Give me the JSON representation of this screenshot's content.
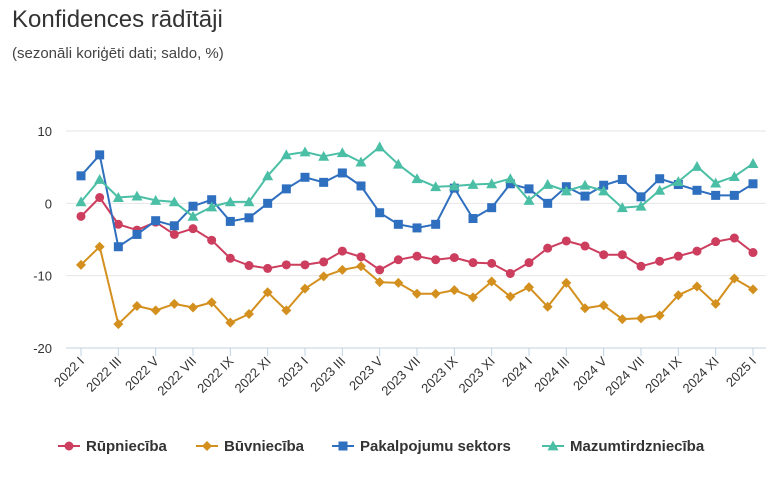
{
  "chart_data": {
    "type": "line",
    "title": "Konfidences rādītāji",
    "subtitle": "(sezonāli koriģēti dati; saldo, %)",
    "xlabel": "",
    "ylabel": "",
    "ylim": [
      -20,
      10
    ],
    "yticks": [
      10,
      0,
      -10,
      -20
    ],
    "grid": true,
    "legend_position": "bottom",
    "x": [
      "2022 I",
      "2022 II",
      "2022 III",
      "2022 IV",
      "2022 V",
      "2022 VI",
      "2022 VII",
      "2022 VIII",
      "2022 IX",
      "2022 X",
      "2022 XI",
      "2022 XII",
      "2023 I",
      "2023 II",
      "2023 III",
      "2023 IV",
      "2023 V",
      "2023 VI",
      "2023 VII",
      "2023 VIII",
      "2023 IX",
      "2023 X",
      "2023 XI",
      "2023 XII",
      "2024 I",
      "2024 II",
      "2024 III",
      "2024 IV",
      "2024 V",
      "2024 VI",
      "2024 VII",
      "2024 VIII",
      "2024 IX",
      "2024 X",
      "2024 XI",
      "2024 XII",
      "2025 I"
    ],
    "x_tick_labels": [
      "2022 I",
      "2022 III",
      "2022 V",
      "2022 VII",
      "2022 IX",
      "2022 XI",
      "2023 I",
      "2023 III",
      "2023 V",
      "2023 VII",
      "2023 IX",
      "2023 XI",
      "2024 I",
      "2024 III",
      "2024 V",
      "2024 VII",
      "2024 IX",
      "2024 XI",
      "2025 I"
    ],
    "series": [
      {
        "name": "Rūpniecība",
        "color": "#cc3d5e",
        "marker": "circle",
        "values": [
          -1.8,
          0.8,
          -2.9,
          -3.7,
          -2.6,
          -4.3,
          -3.5,
          -5.1,
          -7.6,
          -8.6,
          -9.0,
          -8.5,
          -8.5,
          -8.1,
          -6.6,
          -7.4,
          -9.2,
          -7.8,
          -7.3,
          -7.8,
          -7.5,
          -8.2,
          -8.3,
          -9.7,
          -8.2,
          -6.2,
          -5.2,
          -5.9,
          -7.1,
          -7.1,
          -8.7,
          -8.0,
          -7.3,
          -6.6,
          -5.3,
          -4.8,
          -6.8
        ]
      },
      {
        "name": "Būvniecība",
        "color": "#d4901e",
        "marker": "diamond",
        "values": [
          -8.5,
          -6.0,
          -16.7,
          -14.2,
          -14.8,
          -13.9,
          -14.4,
          -13.7,
          -16.5,
          -15.3,
          -12.3,
          -14.8,
          -11.8,
          -10.1,
          -9.2,
          -8.7,
          -10.9,
          -11.0,
          -12.5,
          -12.5,
          -12.0,
          -13.0,
          -10.8,
          -12.9,
          -11.6,
          -14.3,
          -11.0,
          -14.5,
          -14.1,
          -16.0,
          -15.9,
          -15.5,
          -12.7,
          -11.5,
          -13.9,
          -10.4,
          -11.9
        ]
      },
      {
        "name": "Pakalpojumu sektors",
        "color": "#2f6fbf",
        "marker": "square",
        "values": [
          3.8,
          6.7,
          -6.0,
          -4.3,
          -2.4,
          -3.1,
          -0.4,
          0.5,
          -2.5,
          -2.0,
          0.0,
          2.0,
          3.6,
          2.9,
          4.2,
          2.4,
          -1.3,
          -2.9,
          -3.4,
          -2.9,
          2.1,
          -2.1,
          -0.6,
          2.7,
          2.0,
          0.0,
          2.3,
          1.0,
          2.5,
          3.3,
          0.9,
          3.4,
          2.6,
          1.8,
          1.1,
          1.1,
          2.7
        ]
      },
      {
        "name": "Mazumtirdzniecība",
        "color": "#4bbfa5",
        "marker": "triangle",
        "values": [
          0.2,
          3.3,
          0.8,
          1.0,
          0.4,
          0.2,
          -1.8,
          -0.5,
          0.2,
          0.2,
          3.8,
          6.7,
          7.1,
          6.5,
          7.0,
          5.7,
          7.8,
          5.4,
          3.4,
          2.3,
          2.4,
          2.6,
          2.7,
          3.4,
          0.4,
          2.6,
          1.7,
          2.5,
          1.7,
          -0.6,
          -0.4,
          1.8,
          3.0,
          5.1,
          2.8,
          3.7,
          5.5
        ]
      }
    ]
  }
}
